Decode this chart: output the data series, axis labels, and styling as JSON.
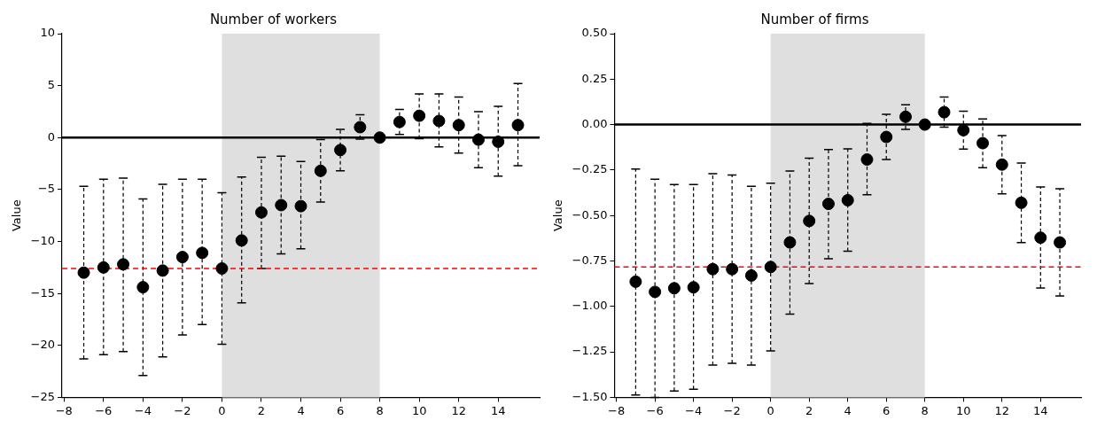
{
  "chart_data": [
    {
      "type": "scatter",
      "title": "Number of workers",
      "ylabel": "Value",
      "marker": "circle",
      "grid": false,
      "legend": false,
      "xlim": [
        -8.1,
        16.1
      ],
      "ylim": [
        -25,
        10
      ],
      "xticks": [
        {
          "value": -8,
          "label": "−8"
        },
        {
          "value": -6,
          "label": "−6"
        },
        {
          "value": -4,
          "label": "−4"
        },
        {
          "value": -2,
          "label": "−2"
        },
        0,
        2,
        4,
        6,
        8,
        10,
        12,
        14
      ],
      "yticks": [
        {
          "value": -25,
          "label": "−25"
        },
        {
          "value": -20,
          "label": "−20"
        },
        {
          "value": -15,
          "label": "−15"
        },
        {
          "value": -10,
          "label": "−10"
        },
        {
          "value": -5,
          "label": "−5"
        },
        0,
        5,
        10
      ],
      "bands": [
        {
          "axis": "x",
          "from": 0,
          "to": 8,
          "color": "#dfdfdf"
        }
      ],
      "ref_lines": [
        {
          "axis": "y",
          "value": 0,
          "color": "#000000",
          "line_style": "solid"
        },
        {
          "axis": "y",
          "value": -12.6,
          "color": "#ff0000",
          "line_style": "dashed"
        }
      ],
      "series": [
        {
          "color": "#000000",
          "x": [
            -7,
            -6,
            -5,
            -4,
            -3,
            -2,
            -1,
            0,
            1,
            2,
            3,
            4,
            5,
            6,
            7,
            8,
            9,
            10,
            11,
            12,
            13,
            14,
            15
          ],
          "values": [
            -13.0,
            -12.5,
            -12.2,
            -14.4,
            -12.8,
            -11.5,
            -11.1,
            -12.6,
            -9.9,
            -7.2,
            -6.5,
            -6.6,
            -3.2,
            -1.2,
            1.0,
            0,
            1.5,
            2.1,
            1.6,
            1.2,
            -0.2,
            -0.4,
            1.2
          ],
          "errors": [
            [
              -21.3,
              -4.7
            ],
            [
              -20.9,
              -4.0
            ],
            [
              -20.6,
              -3.9
            ],
            [
              -22.9,
              -5.9
            ],
            [
              -21.1,
              -4.5
            ],
            [
              -19.0,
              -4.0
            ],
            [
              -18.0,
              -4.0
            ],
            [
              -19.9,
              -5.3
            ],
            [
              -15.9,
              -3.8
            ],
            [
              -12.6,
              -1.9
            ],
            [
              -11.2,
              -1.8
            ],
            [
              -10.7,
              -2.3
            ],
            [
              -6.2,
              -0.2
            ],
            [
              -3.2,
              0.8
            ],
            [
              -0.15,
              2.2
            ],
            null,
            [
              0.3,
              2.7
            ],
            [
              -0.1,
              4.2
            ],
            [
              -0.9,
              4.2
            ],
            [
              -1.5,
              3.9
            ],
            [
              -2.9,
              2.5
            ],
            [
              -3.7,
              3.0
            ],
            [
              -2.7,
              5.2
            ]
          ]
        }
      ]
    },
    {
      "type": "scatter",
      "title": "Number of firms",
      "ylabel": "Value",
      "marker": "circle",
      "grid": false,
      "legend": false,
      "xlim": [
        -8.1,
        16.1
      ],
      "ylim": [
        -1.5,
        0.5
      ],
      "xticks": [
        {
          "value": -8,
          "label": "−8"
        },
        {
          "value": -6,
          "label": "−6"
        },
        {
          "value": -4,
          "label": "−4"
        },
        {
          "value": -2,
          "label": "−2"
        },
        0,
        2,
        4,
        6,
        8,
        10,
        12,
        14
      ],
      "yticks": [
        {
          "value": -1.5,
          "label": "−1.50"
        },
        {
          "value": -1.25,
          "label": "−1.25"
        },
        {
          "value": -1,
          "label": "−1.00"
        },
        {
          "value": -0.75,
          "label": "−0.75"
        },
        {
          "value": -0.5,
          "label": "−0.50"
        },
        {
          "value": -0.25,
          "label": "−0.25"
        },
        {
          "value": 0,
          "label": "0.00"
        },
        0.25,
        {
          "value": 0.5,
          "label": "0.50"
        }
      ],
      "bands": [
        {
          "axis": "x",
          "from": 0,
          "to": 8,
          "color": "#dfdfdf"
        }
      ],
      "ref_lines": [
        {
          "axis": "y",
          "value": 0,
          "color": "#000000",
          "line_style": "solid"
        },
        {
          "axis": "y",
          "value": -0.783,
          "color": "#ff0000",
          "line_style": "dashed"
        }
      ],
      "series": [
        {
          "color": "#000000",
          "x": [
            -7,
            -6,
            -5,
            -4,
            -3,
            -2,
            -1,
            0,
            1,
            2,
            3,
            4,
            5,
            6,
            7,
            8,
            9,
            10,
            11,
            12,
            13,
            14,
            15
          ],
          "values": [
            -0.864,
            -0.92,
            -0.9,
            -0.895,
            -0.795,
            -0.795,
            -0.83,
            -0.783,
            -0.648,
            -0.53,
            -0.436,
            -0.416,
            -0.192,
            -0.068,
            0.043,
            0,
            0.068,
            -0.031,
            -0.102,
            -0.22,
            -0.43,
            -0.622,
            -0.648
          ],
          "errors": [
            [
              -1.487,
              -0.244
            ],
            [
              -1.5,
              -0.3
            ],
            [
              -1.465,
              -0.33
            ],
            [
              -1.456,
              -0.33
            ],
            [
              -1.323,
              -0.27
            ],
            [
              -1.313,
              -0.277
            ],
            [
              -1.323,
              -0.34
            ],
            [
              -1.245,
              -0.322
            ],
            [
              -1.042,
              -0.255
            ],
            [
              -0.874,
              -0.185
            ],
            [
              -0.738,
              -0.137
            ],
            [
              -0.696,
              -0.133
            ],
            [
              -0.386,
              0.007
            ],
            [
              -0.192,
              0.057
            ],
            [
              -0.026,
              0.109
            ],
            null,
            [
              -0.014,
              0.152
            ],
            [
              -0.135,
              0.073
            ],
            [
              -0.237,
              0.031
            ],
            [
              -0.381,
              -0.061
            ],
            [
              -0.649,
              -0.211
            ],
            [
              -0.899,
              -0.343
            ],
            [
              -0.942,
              -0.353
            ]
          ]
        }
      ]
    }
  ]
}
